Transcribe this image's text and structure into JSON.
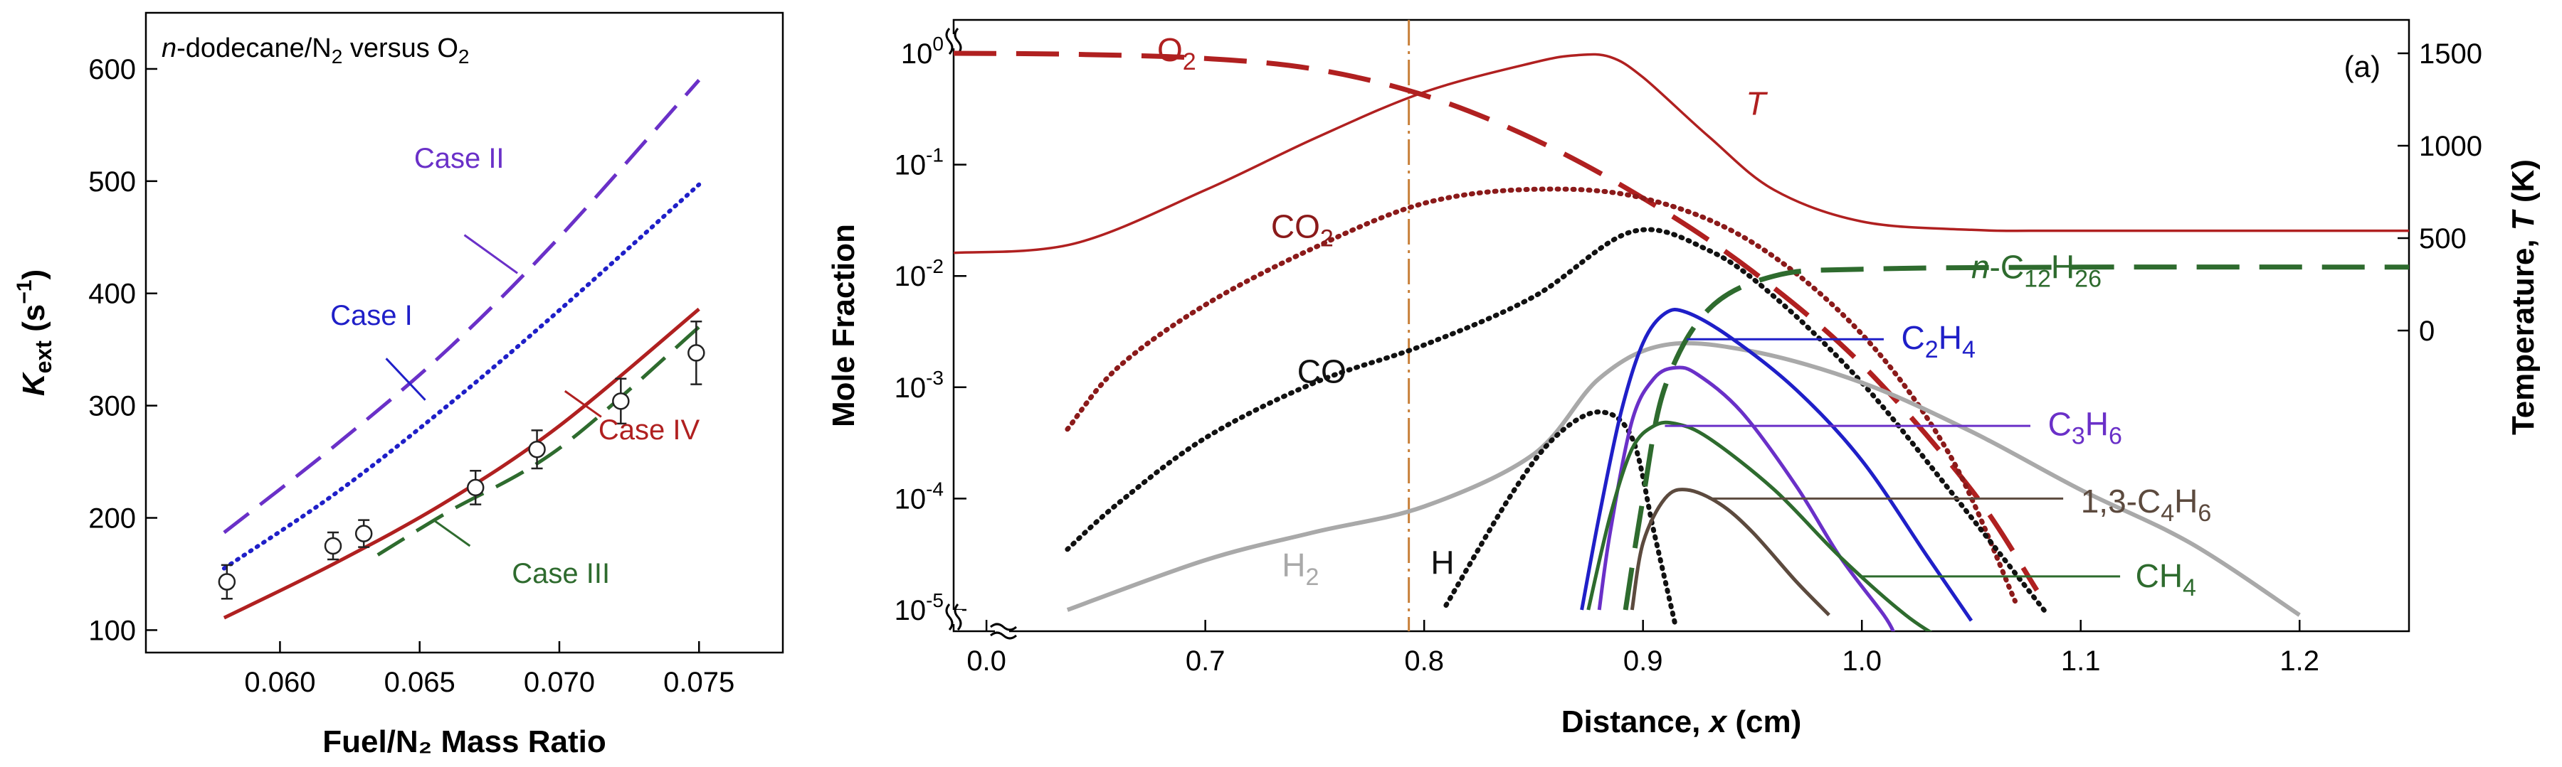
{
  "colors": {
    "blue": "#1f1fc8",
    "purple": "#6a30c8",
    "red": "#b02020",
    "darkred": "#8b1a1a",
    "green": "#2e6b2e",
    "gray": "#a9a9a9",
    "brown": "#5c4a3e",
    "black": "#111111",
    "orange": "#c8803a"
  },
  "chart_data": [
    {
      "type": "line",
      "panel": "left",
      "annotation": {
        "pre": "n",
        "post": "-dodecane/N",
        "sub1": "2",
        "mid": " versus O",
        "sub2": "2"
      },
      "xlabel": "Fuel/N₂ Mass Ratio",
      "ylabel": {
        "base": "K",
        "sub": "ext",
        "unit_pre": " (s",
        "unit_sup": "−1",
        "unit_post": ")"
      },
      "xlim": [
        0.0552,
        0.078
      ],
      "ylim": [
        80,
        650
      ],
      "x_ticks": [
        "0.060",
        "0.065",
        "0.070",
        "0.075"
      ],
      "x_tick_values": [
        0.06,
        0.065,
        0.07,
        0.075
      ],
      "y_ticks": [
        "100",
        "200",
        "300",
        "400",
        "500",
        "600"
      ],
      "y_tick_values": [
        100,
        200,
        300,
        400,
        500,
        600
      ],
      "series": [
        {
          "name": "Case I",
          "style": "dotted",
          "color": "blue",
          "x": [
            0.058,
            0.062,
            0.066,
            0.07,
            0.075
          ],
          "y": [
            155,
            222,
            300,
            385,
            497
          ]
        },
        {
          "name": "Case II",
          "style": "dashed",
          "color": "purple",
          "x": [
            0.058,
            0.062,
            0.066,
            0.07,
            0.075
          ],
          "y": [
            187,
            265,
            350,
            450,
            590
          ]
        },
        {
          "name": "Case III",
          "style": "dashed",
          "color": "green",
          "x": [
            0.0635,
            0.066,
            0.07,
            0.075
          ],
          "y": [
            167,
            205,
            262,
            370
          ]
        },
        {
          "name": "Case IV",
          "style": "solid",
          "color": "red",
          "x": [
            0.058,
            0.062,
            0.066,
            0.07,
            0.075
          ],
          "y": [
            111,
            160,
            215,
            282,
            386
          ]
        }
      ],
      "experimental": {
        "x": [
          0.0581,
          0.0619,
          0.063,
          0.067,
          0.0692,
          0.0722,
          0.0749
        ],
        "y": [
          143,
          175,
          186,
          227,
          261,
          304,
          347
        ],
        "err": [
          15,
          12,
          12,
          15,
          17,
          20,
          28
        ]
      },
      "labels": [
        {
          "text": "Case II",
          "color": "purple",
          "x": 0.0648,
          "y": 512,
          "leader": [
            [
              0.0666,
              452
            ],
            [
              0.0685,
              418
            ]
          ]
        },
        {
          "name": "Case I",
          "text": "Case I",
          "color": "blue",
          "x": 0.0618,
          "y": 372,
          "leader": [
            [
              0.0638,
              342
            ],
            [
              0.0652,
              305
            ]
          ]
        },
        {
          "text": "Case IV",
          "color": "red",
          "x": 0.0714,
          "y": 270,
          "leader": [
            [
              0.0715,
              290
            ],
            [
              0.0702,
              313
            ]
          ]
        },
        {
          "text": "Case III",
          "color": "green",
          "x": 0.0683,
          "y": 142,
          "leader": [
            [
              0.0668,
              175
            ],
            [
              0.0655,
              198
            ]
          ]
        }
      ]
    },
    {
      "type": "line",
      "panel": "right",
      "panel_label": "(a)",
      "xlabel": "Distance, x (cm)",
      "ylabel": "Mole Fraction",
      "ylabel_right": "Temperature, T (K)",
      "y_scale": "log",
      "xlim": [
        0.585,
        1.25
      ],
      "x_tick_values": [
        0.6,
        0.7,
        0.8,
        0.9,
        1.0,
        1.1,
        1.2
      ],
      "x_ticks": [
        "0.0",
        "0.7",
        "0.8",
        "0.9",
        "1.0",
        "1.1",
        "1.2"
      ],
      "x_axis_break_after": 0.6,
      "y_ticks": [
        {
          "base": "10",
          "exp": "0",
          "value": 1
        },
        {
          "base": "10",
          "exp": "-1",
          "value": 0.1
        },
        {
          "base": "10",
          "exp": "-2",
          "value": 0.01
        },
        {
          "base": "10",
          "exp": "-3",
          "value": 0.001
        },
        {
          "base": "10",
          "exp": "-4",
          "value": 0.0001
        },
        {
          "base": "10",
          "exp": "-5",
          "value": 1e-05
        }
      ],
      "y_right_ticks": [
        "0",
        "500",
        "1000",
        "1500"
      ],
      "y_right_tick_values": [
        0,
        500,
        1000,
        1500
      ],
      "vertical_marker_x": 0.793,
      "series": [
        {
          "name": "T",
          "axis": "right",
          "style": "solid",
          "color": "red",
          "x": [
            0.585,
            0.64,
            0.7,
            0.75,
            0.8,
            0.85,
            0.87,
            0.885,
            0.9,
            0.93,
            0.96,
            1.0,
            1.05,
            1.1,
            1.25
          ],
          "y": [
            420,
            470,
            760,
            1040,
            1290,
            1450,
            1490,
            1480,
            1370,
            1050,
            760,
            590,
            545,
            540,
            540
          ]
        },
        {
          "name": "O2",
          "style": "longdash",
          "color": "red",
          "x": [
            0.585,
            0.64,
            0.7,
            0.75,
            0.8,
            0.85,
            0.9,
            0.95,
            1.0,
            1.05,
            1.08
          ],
          "y": [
            1.0,
            0.98,
            0.9,
            0.72,
            0.42,
            0.17,
            0.05,
            0.011,
            0.0016,
            0.00012,
            1.5e-05
          ]
        },
        {
          "name": "CO2",
          "style": "dotted",
          "color": "darkred",
          "x": [
            0.637,
            0.66,
            0.7,
            0.75,
            0.8,
            0.85,
            0.9,
            0.95,
            1.0,
            1.04,
            1.07
          ],
          "y": [
            0.00042,
            0.0015,
            0.0055,
            0.018,
            0.045,
            0.06,
            0.05,
            0.02,
            0.003,
            0.00025,
            1.2e-05
          ]
        },
        {
          "name": "CO",
          "style": "dotted",
          "color": "black",
          "x": [
            0.637,
            0.66,
            0.7,
            0.75,
            0.8,
            0.85,
            0.895,
            0.93,
            0.96,
            1.0,
            1.04,
            1.085
          ],
          "y": [
            3.5e-05,
            9e-05,
            0.00035,
            0.0011,
            0.0024,
            0.0065,
            0.025,
            0.017,
            0.0065,
            0.0011,
            0.00012,
            9e-06
          ]
        },
        {
          "name": "H2",
          "style": "solid",
          "color": "gray",
          "x": [
            0.637,
            0.7,
            0.75,
            0.8,
            0.85,
            0.88,
            0.91,
            0.95,
            1.0,
            1.05,
            1.1,
            1.15,
            1.2
          ],
          "y": [
            1e-05,
            2.8e-05,
            5e-05,
            8.5e-05,
            0.00025,
            0.0012,
            0.0024,
            0.0021,
            0.0011,
            0.0004,
            0.00012,
            4e-05,
            9e-06
          ]
        },
        {
          "name": "H",
          "style": "dotted",
          "color": "black",
          "x": [
            0.81,
            0.84,
            0.86,
            0.88,
            0.895,
            0.905,
            0.915
          ],
          "y": [
            1.1e-05,
            0.00011,
            0.00036,
            0.0006,
            0.00035,
            5e-05,
            7e-06
          ]
        },
        {
          "name": "C2H4",
          "style": "solid",
          "color": "blue",
          "x": [
            0.872,
            0.88,
            0.89,
            0.9,
            0.91,
            0.92,
            0.94,
            0.97,
            1.0,
            1.03,
            1.05
          ],
          "y": [
            1e-05,
            7e-05,
            0.0006,
            0.0025,
            0.0046,
            0.0047,
            0.0028,
            0.00095,
            0.00022,
            3e-05,
            8e-06
          ]
        },
        {
          "name": "C3H6",
          "style": "solid",
          "color": "purple",
          "x": [
            0.88,
            0.885,
            0.895,
            0.905,
            0.915,
            0.925,
            0.945,
            0.97,
            0.99,
            1.01,
            1.015
          ],
          "y": [
            1e-05,
            5e-05,
            0.0005,
            0.0012,
            0.0015,
            0.0013,
            0.0006,
            0.00013,
            3e-05,
            9e-06,
            6e-06
          ]
        },
        {
          "name": "CH4",
          "style": "solid",
          "color": "green",
          "x": [
            0.875,
            0.885,
            0.895,
            0.905,
            0.915,
            0.93,
            0.96,
            0.99,
            1.02,
            1.04
          ],
          "y": [
            1e-05,
            7e-05,
            0.00028,
            0.00045,
            0.00047,
            0.00035,
            0.00012,
            3e-05,
            9e-06,
            5e-06
          ]
        },
        {
          "name": "1,3-C4H6",
          "style": "solid",
          "color": "brown",
          "x": [
            0.895,
            0.9,
            0.91,
            0.92,
            0.935,
            0.95,
            0.97,
            0.985
          ],
          "y": [
            1e-05,
            4e-05,
            0.0001,
            0.00012,
            9e-05,
            5e-05,
            1.8e-05,
            9e-06
          ]
        },
        {
          "name": "n-C12H26",
          "style": "longdash",
          "color": "green",
          "x": [
            0.892,
            0.9,
            0.91,
            0.93,
            0.96,
            1.0,
            1.1,
            1.25
          ],
          "y": [
            1e-05,
            0.0001,
            0.001,
            0.005,
            0.01,
            0.0115,
            0.012,
            0.012
          ]
        }
      ],
      "labels": [
        {
          "text": "O",
          "sub": "2",
          "color": "red",
          "x": 0.678,
          "y": 0.85
        },
        {
          "text": "T",
          "color": "red",
          "italic": true,
          "x": 0.947,
          "y": 0.28
        },
        {
          "text": "CO",
          "sub": "2",
          "color": "darkred",
          "x": 0.73,
          "y": 0.022
        },
        {
          "text": "CO",
          "color": "black",
          "x": 0.742,
          "y": 0.0011
        },
        {
          "text": "H",
          "sub": "2",
          "color": "gray",
          "x": 0.735,
          "y": 2e-05
        },
        {
          "text": "H",
          "color": "black",
          "x": 0.803,
          "y": 2.1e-05
        },
        {
          "text": "C",
          "sub": "2",
          "mid": "H",
          "sub2": "4",
          "color": "blue",
          "x": 1.018,
          "y": 0.0022,
          "leader": [
            [
              0.92,
              0.0027
            ],
            [
              1.01,
              0.0027
            ]
          ]
        },
        {
          "text": "C",
          "sub": "3",
          "mid": "H",
          "sub2": "6",
          "color": "purple",
          "x": 1.085,
          "y": 0.00037,
          "leader": [
            [
              0.91,
              0.00045
            ],
            [
              1.077,
              0.00045
            ]
          ]
        },
        {
          "text": "1,3-C",
          "sub": "4",
          "mid": "H",
          "sub2": "6",
          "color": "brown",
          "x": 1.1,
          "y": 7.5e-05,
          "leader": [
            [
              0.93,
              0.0001
            ],
            [
              1.092,
              0.0001
            ]
          ]
        },
        {
          "text": "CH",
          "sub": "4",
          "color": "green",
          "x": 1.125,
          "y": 1.6e-05,
          "leader": [
            [
              1.0,
              2e-05
            ],
            [
              1.118,
              2e-05
            ]
          ]
        },
        {
          "text": "n",
          "italic": true,
          "post": "-C",
          "sub": "12",
          "mid": "H",
          "sub2": "26",
          "color": "green",
          "x": 1.05,
          "y": 0.0095
        }
      ]
    }
  ]
}
